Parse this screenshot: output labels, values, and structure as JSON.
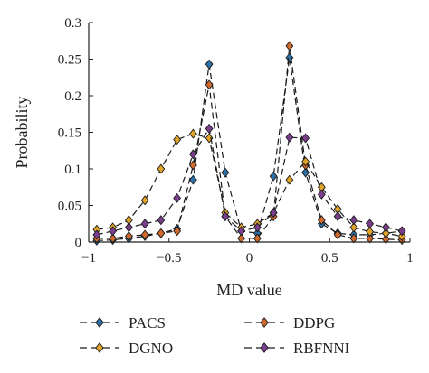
{
  "chart_data": {
    "type": "line",
    "xlabel": "MD value",
    "ylabel": "Probability",
    "xlim": [
      -1,
      1
    ],
    "ylim": [
      0,
      0.3
    ],
    "xticks": [
      -1,
      -0.5,
      0,
      0.5,
      1
    ],
    "xtick_labels": [
      "−1",
      "−0.5",
      "0",
      "0.5",
      "1"
    ],
    "yticks": [
      0,
      0.05,
      0.1,
      0.15,
      0.2,
      0.25,
      0.3
    ],
    "ytick_labels": [
      "0",
      "0.05",
      "0.1",
      "0.15",
      "0.2",
      "0.25",
      "0.3"
    ],
    "grid": false,
    "legend_position": "bottom",
    "line_style": "dashed",
    "marker": "diamond",
    "series": [
      {
        "name": "PACS",
        "color": "#2e6fa6",
        "x": [
          -0.95,
          -0.85,
          -0.75,
          -0.65,
          -0.55,
          -0.45,
          -0.35,
          -0.25,
          -0.15,
          -0.05,
          0.05,
          0.15,
          0.25,
          0.35,
          0.45,
          0.55,
          0.65,
          0.75,
          0.85,
          0.95
        ],
        "y": [
          0.002,
          0.003,
          0.005,
          0.008,
          0.012,
          0.018,
          0.085,
          0.243,
          0.095,
          0.015,
          0.012,
          0.09,
          0.252,
          0.095,
          0.025,
          0.012,
          0.01,
          0.01,
          0.012,
          0.015
        ]
      },
      {
        "name": "DDPG",
        "color": "#cf6a2c",
        "x": [
          -0.95,
          -0.85,
          -0.75,
          -0.65,
          -0.55,
          -0.45,
          -0.35,
          -0.25,
          -0.15,
          -0.05,
          0.05,
          0.15,
          0.25,
          0.35,
          0.45,
          0.55,
          0.65,
          0.75,
          0.85,
          0.95
        ],
        "y": [
          0.005,
          0.005,
          0.008,
          0.01,
          0.012,
          0.015,
          0.105,
          0.215,
          0.035,
          0.005,
          0.005,
          0.035,
          0.268,
          0.105,
          0.03,
          0.01,
          0.005,
          0.005,
          0.004,
          0.003
        ]
      },
      {
        "name": "DGNO",
        "color": "#e1a42a",
        "x": [
          -0.95,
          -0.85,
          -0.75,
          -0.65,
          -0.55,
          -0.45,
          -0.35,
          -0.25,
          -0.15,
          -0.05,
          0.05,
          0.15,
          0.25,
          0.35,
          0.45,
          0.55,
          0.65,
          0.75,
          0.85,
          0.95
        ],
        "y": [
          0.017,
          0.02,
          0.03,
          0.057,
          0.1,
          0.14,
          0.148,
          0.142,
          0.04,
          0.02,
          0.025,
          0.04,
          0.085,
          0.11,
          0.075,
          0.045,
          0.02,
          0.014,
          0.012,
          0.008
        ]
      },
      {
        "name": "RBFNNI",
        "color": "#7a3e8c",
        "x": [
          -0.95,
          -0.85,
          -0.75,
          -0.65,
          -0.55,
          -0.45,
          -0.35,
          -0.25,
          -0.15,
          -0.05,
          0.05,
          0.15,
          0.25,
          0.35,
          0.45,
          0.55,
          0.65,
          0.75,
          0.85,
          0.95
        ],
        "y": [
          0.01,
          0.015,
          0.02,
          0.025,
          0.03,
          0.06,
          0.12,
          0.155,
          0.035,
          0.015,
          0.02,
          0.04,
          0.143,
          0.142,
          0.065,
          0.035,
          0.03,
          0.025,
          0.02,
          0.015
        ]
      }
    ]
  }
}
